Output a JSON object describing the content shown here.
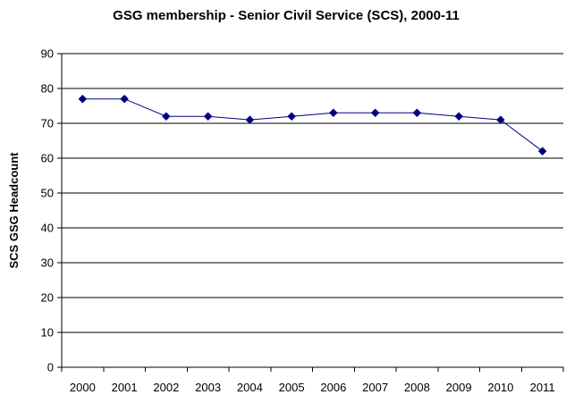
{
  "chart_data": {
    "type": "line",
    "title": "GSG membership - Senior Civil Service (SCS), 2000-11",
    "xlabel": "",
    "ylabel": "SCS GSG Headcount",
    "categories": [
      "2000",
      "2001",
      "2002",
      "2003",
      "2004",
      "2005",
      "2006",
      "2007",
      "2008",
      "2009",
      "2010",
      "2011"
    ],
    "series": [
      {
        "values": [
          77,
          77,
          72,
          72,
          71,
          72,
          73,
          73,
          73,
          72,
          71,
          62
        ]
      }
    ],
    "ylim": [
      0,
      90
    ],
    "yticks": [
      0,
      10,
      20,
      30,
      40,
      50,
      60,
      70,
      80,
      90
    ],
    "grid": true,
    "legend": "none",
    "marker": "diamond",
    "colors": {
      "series": "#000080",
      "grid": "#000000",
      "axis": "#000000"
    }
  }
}
